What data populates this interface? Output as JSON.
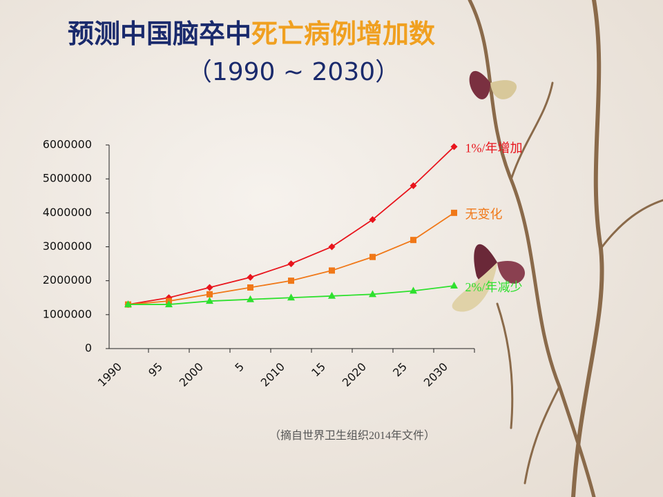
{
  "chart_data": {
    "type": "line",
    "title": [
      "预测中国脑卒中",
      "死亡病例增加数"
    ],
    "subtitle": "（1990 ~ 2030）",
    "note": "（摘自世界卫生组织2014年文件）",
    "categories": [
      "1990",
      "95",
      "2000",
      "5",
      "2010",
      "15",
      "2020",
      "25",
      "2030"
    ],
    "series": [
      {
        "name": "1%/年增加",
        "color": "#e8141c",
        "marker": "diamond",
        "values": [
          1300000,
          1500000,
          1800000,
          2100000,
          2500000,
          3000000,
          3800000,
          4800000,
          5950000
        ]
      },
      {
        "name": "无变化",
        "color": "#f07818",
        "marker": "square",
        "values": [
          1300000,
          1400000,
          1600000,
          1800000,
          2000000,
          2300000,
          2700000,
          3200000,
          4000000
        ]
      },
      {
        "name": "2%/年减少",
        "color": "#2ee02e",
        "marker": "triangle",
        "values": [
          1300000,
          1300000,
          1400000,
          1450000,
          1500000,
          1550000,
          1600000,
          1700000,
          1850000
        ]
      }
    ],
    "ylim": [
      0,
      6000000
    ],
    "yticks": [
      0,
      1000000,
      2000000,
      3000000,
      4000000,
      5000000,
      6000000
    ]
  }
}
